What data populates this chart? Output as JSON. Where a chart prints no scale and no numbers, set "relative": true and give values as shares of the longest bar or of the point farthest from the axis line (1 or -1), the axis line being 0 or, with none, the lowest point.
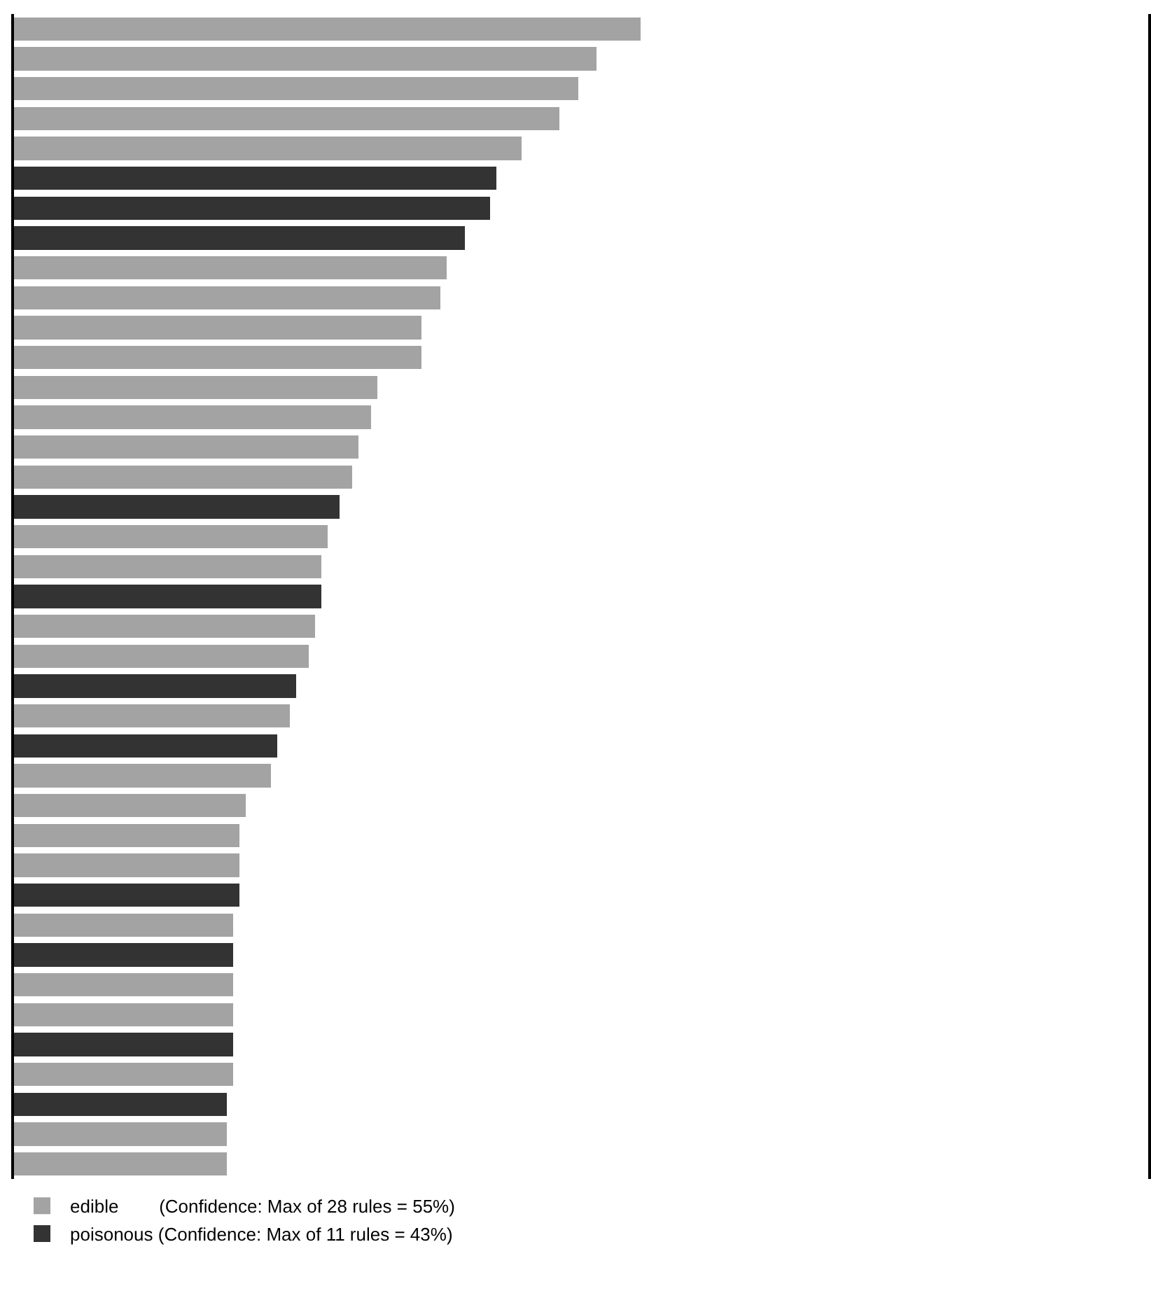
{
  "chart_data": {
    "type": "bar",
    "orientation": "horizontal",
    "relative": true,
    "stacked": true,
    "legend": "bottom left",
    "categories": [
      null,
      null,
      null,
      null,
      null,
      null,
      null,
      null,
      null,
      null,
      null,
      null,
      null,
      null,
      null,
      null,
      null,
      null,
      null,
      null,
      null,
      null,
      null,
      null,
      null,
      null,
      null,
      null,
      null,
      null,
      null,
      null,
      null,
      null,
      null,
      null,
      null,
      null,
      null
    ],
    "series": [
      {
        "name": "edible        (Confidence: Max of 28 rules = 55%)",
        "color": "#a3a3a3",
        "values": [
          1.0,
          0.93,
          0.9,
          0.87,
          0.81,
          null,
          null,
          null,
          0.69,
          0.68,
          0.65,
          0.65,
          0.58,
          0.57,
          0.55,
          0.54,
          null,
          0.5,
          0.49,
          null,
          0.48,
          0.47,
          null,
          0.44,
          null,
          0.41,
          0.37,
          0.36,
          0.36,
          null,
          0.35,
          null,
          0.35,
          0.35,
          null,
          0.35,
          null,
          0.34,
          0.34
        ]
      },
      {
        "name": "poisonous (Confidence: Max of 11 rules = 43%)",
        "color": "#333333",
        "values": [
          null,
          null,
          null,
          null,
          null,
          0.77,
          0.76,
          0.72,
          null,
          null,
          null,
          null,
          null,
          null,
          null,
          null,
          0.52,
          null,
          null,
          0.49,
          null,
          null,
          0.45,
          null,
          0.42,
          null,
          null,
          null,
          null,
          0.36,
          null,
          0.35,
          null,
          null,
          0.35,
          null,
          0.34,
          null,
          null
        ]
      }
    ]
  }
}
